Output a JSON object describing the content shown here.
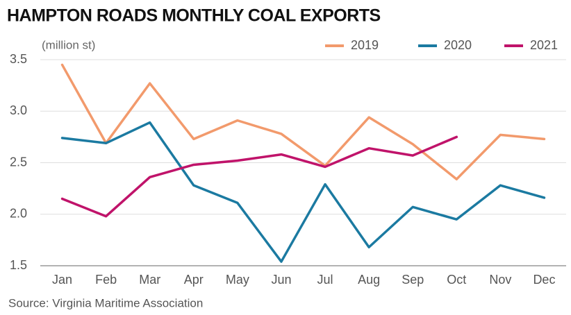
{
  "chart_data": {
    "type": "line",
    "title": "HAMPTON ROADS MONTHLY COAL EXPORTS",
    "y_label": "(million st)",
    "source": "Source: Virginia Maritime Association",
    "categories": [
      "Jan",
      "Feb",
      "Mar",
      "Apr",
      "May",
      "Jun",
      "Jul",
      "Aug",
      "Sep",
      "Oct",
      "Nov",
      "Dec"
    ],
    "series": [
      {
        "name": "2019",
        "color": "#f29a6c",
        "values": [
          3.45,
          2.69,
          3.27,
          2.73,
          2.91,
          2.78,
          2.47,
          2.94,
          2.68,
          2.34,
          2.77,
          2.73
        ]
      },
      {
        "name": "2020",
        "color": "#1b7aa1",
        "values": [
          2.74,
          2.69,
          2.89,
          2.28,
          2.11,
          1.54,
          2.29,
          1.68,
          2.07,
          1.95,
          2.28,
          2.16
        ]
      },
      {
        "name": "2021",
        "color": "#c0136a",
        "values": [
          2.15,
          1.98,
          2.36,
          2.48,
          2.52,
          2.58,
          2.46,
          2.64,
          2.57,
          2.75,
          null,
          null
        ]
      }
    ],
    "ylim": [
      1.5,
      3.5
    ],
    "yticks": [
      1.5,
      {
        "value": 2,
        "label": "2.0"
      },
      2.5,
      {
        "value": 3,
        "label": "3.0"
      },
      3.5
    ],
    "grid": true,
    "legend": "top-right"
  }
}
